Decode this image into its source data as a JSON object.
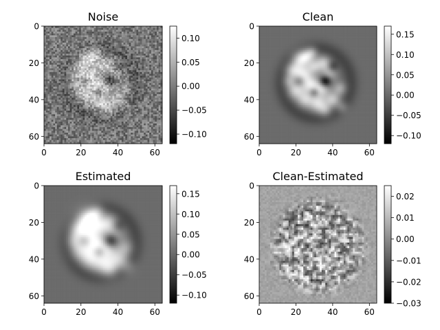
{
  "chart_data": [
    {
      "type": "heatmap",
      "title": "Noise",
      "cmap": "gray",
      "xticks": [
        0,
        20,
        40,
        60
      ],
      "yticks": [
        0,
        20,
        40,
        60
      ],
      "xlim": [
        0,
        64
      ],
      "ylim": [
        64,
        0
      ],
      "colorbar": {
        "min": -0.12,
        "max": 0.125,
        "ticks": [
          0.1,
          0.05,
          0.0,
          -0.05,
          -0.1
        ],
        "tick_labels": [
          "0.10",
          "0.05",
          "0.00",
          "−0.05",
          "−0.10"
        ]
      },
      "image": "noisy particle: bright/dark blobs in a ring of radius ~20 centred at (32,32) over strong gray noise"
    },
    {
      "type": "heatmap",
      "title": "Clean",
      "cmap": "gray",
      "xticks": [
        0,
        20,
        40,
        60
      ],
      "yticks": [
        0,
        20,
        40,
        60
      ],
      "xlim": [
        0,
        64
      ],
      "ylim": [
        64,
        0
      ],
      "colorbar": {
        "min": -0.12,
        "max": 0.17,
        "ticks": [
          0.15,
          0.1,
          0.05,
          0.0,
          -0.05,
          -0.1
        ],
        "tick_labels": [
          "0.15",
          "0.10",
          "0.05",
          "0.00",
          "−0.05",
          "−0.10"
        ]
      },
      "image": "smooth particle: bright curved blobs with dark halo centred at (32,32) on uniform gray background"
    },
    {
      "type": "heatmap",
      "title": "Estimated",
      "cmap": "gray",
      "xticks": [
        0,
        20,
        40,
        60
      ],
      "yticks": [
        0,
        20,
        40,
        60
      ],
      "xlim": [
        0,
        64
      ],
      "ylim": [
        64,
        0
      ],
      "colorbar": {
        "min": -0.12,
        "max": 0.17,
        "ticks": [
          0.15,
          0.1,
          0.05,
          0.0,
          -0.05,
          -0.1
        ],
        "tick_labels": [
          "0.15",
          "0.10",
          "0.05",
          "0.00",
          "−0.05",
          "−0.10"
        ]
      },
      "image": "slightly blurred version of the clean particle"
    },
    {
      "type": "heatmap",
      "title": "Clean-Estimated",
      "cmap": "gray",
      "xticks": [
        0,
        20,
        40,
        60
      ],
      "yticks": [
        0,
        20,
        40,
        60
      ],
      "xlim": [
        0,
        64
      ],
      "ylim": [
        64,
        0
      ],
      "colorbar": {
        "min": -0.03,
        "max": 0.025,
        "ticks": [
          0.02,
          0.01,
          0.0,
          -0.01,
          -0.02,
          -0.03
        ],
        "tick_labels": [
          "0.02",
          "0.01",
          "0.00",
          "−0.01",
          "−0.02",
          "−0.03"
        ]
      },
      "image": "residual: speckled disc of radius ~25 centred at (32,32) on light gray background"
    }
  ]
}
